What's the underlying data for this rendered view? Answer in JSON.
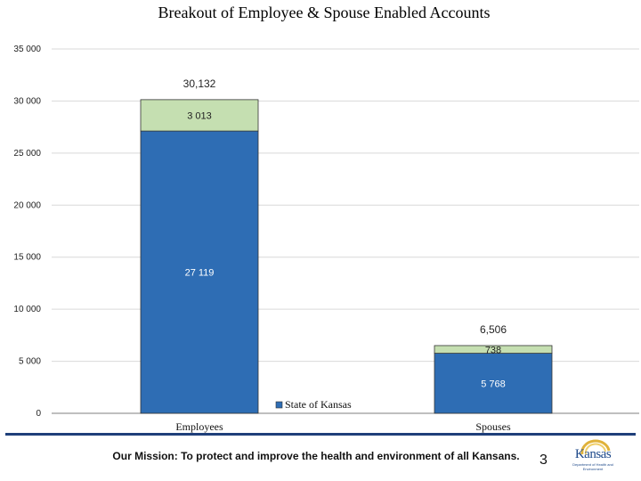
{
  "page": {
    "mission": "Our Mission: To protect and improve the health and environment of all Kansans.",
    "page_number": "3",
    "logo_text": "Kansas",
    "logo_subtext": "Department of Health and Environment"
  },
  "colors": {
    "base_series": "#2e6db4",
    "top_series": "#c5dfb1",
    "axis": "#000000",
    "grid": "#d9d9d9",
    "footer_rule": "#1f3f7a"
  },
  "chart_data": {
    "type": "bar",
    "stacked": true,
    "title": "Breakout of Employee & Spouse Enabled Accounts",
    "categories": [
      "Employees",
      "Spouses"
    ],
    "series": [
      {
        "name": "State of Kansas",
        "values": [
          27119,
          5768
        ],
        "labels": [
          "27 119",
          "5 768"
        ]
      },
      {
        "name": "",
        "values": [
          3013,
          738
        ],
        "labels": [
          "3 013",
          "738"
        ]
      }
    ],
    "totals": [
      30132,
      6506
    ],
    "total_labels": [
      "30,132",
      "6,506"
    ],
    "ylim": [
      0,
      35000
    ],
    "yticks": [
      0,
      5000,
      10000,
      15000,
      20000,
      25000,
      30000,
      35000
    ],
    "ytick_labels": [
      "0",
      "5 000",
      "10 000",
      "15 000",
      "20 000",
      "25 000",
      "30 000",
      "35 000"
    ],
    "legend": {
      "entries": [
        "State of Kansas"
      ],
      "position": "bottom-center"
    },
    "grid": true
  }
}
